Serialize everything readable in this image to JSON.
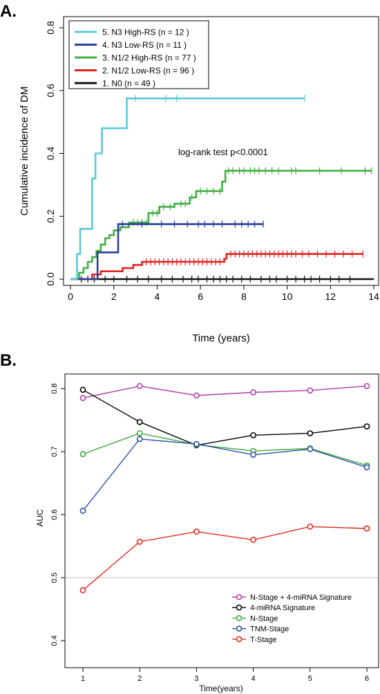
{
  "chart_data": [
    {
      "panel_label": "A.",
      "type": "line",
      "subtype": "step (cumulative incidence)",
      "xlabel": "Time (years)",
      "ylabel": "Cumulative incidence of DM",
      "xlim": [
        0,
        14
      ],
      "ylim": [
        0,
        0.8
      ],
      "xticks": [
        0,
        2,
        4,
        6,
        8,
        10,
        12,
        14
      ],
      "yticks": [
        0.0,
        0.2,
        0.4,
        0.6,
        0.8
      ],
      "grid": false,
      "legend_position": "top-left",
      "annotation": "log-rank test  p<0.0001",
      "series": [
        {
          "name": "5. N3 High-RS (n = 12 )",
          "color": "#5bc8d8",
          "steps": [
            [
              0.0,
              0.0
            ],
            [
              0.3,
              0.0
            ],
            [
              0.3,
              0.08
            ],
            [
              0.45,
              0.08
            ],
            [
              0.45,
              0.16
            ],
            [
              1.0,
              0.16
            ],
            [
              1.0,
              0.32
            ],
            [
              1.15,
              0.32
            ],
            [
              1.15,
              0.4
            ],
            [
              1.45,
              0.4
            ],
            [
              1.45,
              0.48
            ],
            [
              1.8,
              0.48
            ],
            [
              2.6,
              0.48
            ],
            [
              2.6,
              0.575
            ],
            [
              10.8,
              0.575
            ]
          ],
          "censor": [
            3.0,
            4.4,
            4.9,
            10.8
          ]
        },
        {
          "name": "4. N3 Low-RS (n = 11 )",
          "color": "#2a3f9b",
          "steps": [
            [
              0.0,
              0.0
            ],
            [
              1.25,
              0.0
            ],
            [
              1.25,
              0.085
            ],
            [
              2.2,
              0.085
            ],
            [
              2.2,
              0.175
            ],
            [
              8.9,
              0.175
            ]
          ],
          "censor": [
            2.4,
            3.3,
            4.2,
            4.8,
            5.4,
            5.9,
            6.2,
            6.6,
            7.0,
            7.6,
            7.9,
            8.2,
            8.5,
            8.9
          ]
        },
        {
          "name": "3. N1/2 High-RS (n = 77 )",
          "color": "#3fae3f",
          "steps": [
            [
              0.0,
              0.0
            ],
            [
              0.4,
              0.0
            ],
            [
              0.4,
              0.02
            ],
            [
              0.6,
              0.02
            ],
            [
              0.6,
              0.035
            ],
            [
              0.8,
              0.035
            ],
            [
              0.8,
              0.055
            ],
            [
              1.0,
              0.055
            ],
            [
              1.0,
              0.07
            ],
            [
              1.2,
              0.07
            ],
            [
              1.2,
              0.09
            ],
            [
              1.4,
              0.09
            ],
            [
              1.4,
              0.11
            ],
            [
              1.6,
              0.11
            ],
            [
              1.6,
              0.13
            ],
            [
              1.8,
              0.13
            ],
            [
              1.8,
              0.14
            ],
            [
              2.0,
              0.14
            ],
            [
              2.0,
              0.155
            ],
            [
              2.3,
              0.155
            ],
            [
              2.3,
              0.165
            ],
            [
              2.7,
              0.165
            ],
            [
              2.7,
              0.18
            ],
            [
              3.6,
              0.18
            ],
            [
              3.6,
              0.21
            ],
            [
              4.1,
              0.21
            ],
            [
              4.1,
              0.23
            ],
            [
              4.8,
              0.23
            ],
            [
              4.8,
              0.24
            ],
            [
              5.5,
              0.24
            ],
            [
              5.5,
              0.26
            ],
            [
              5.8,
              0.26
            ],
            [
              5.8,
              0.28
            ],
            [
              7.0,
              0.28
            ],
            [
              7.0,
              0.31
            ],
            [
              7.15,
              0.31
            ],
            [
              7.15,
              0.345
            ],
            [
              13.9,
              0.345
            ]
          ],
          "censor": [
            2.9,
            3.1,
            3.3,
            3.5,
            3.8,
            4.0,
            4.3,
            4.6,
            5.1,
            5.3,
            5.6,
            6.0,
            6.3,
            6.6,
            6.9,
            7.3,
            7.5,
            7.8,
            8.0,
            8.3,
            8.5,
            8.7,
            9.0,
            9.3,
            9.6,
            10.2,
            10.4,
            11.5,
            12.5,
            13.6,
            13.9
          ]
        },
        {
          "name": "2. N1/2 Low-RS (n = 96 )",
          "color": "#e02222",
          "steps": [
            [
              0.0,
              0.0
            ],
            [
              1.0,
              0.0
            ],
            [
              1.0,
              0.015
            ],
            [
              1.4,
              0.015
            ],
            [
              1.4,
              0.025
            ],
            [
              2.4,
              0.025
            ],
            [
              2.4,
              0.035
            ],
            [
              2.9,
              0.035
            ],
            [
              2.9,
              0.045
            ],
            [
              3.3,
              0.045
            ],
            [
              3.3,
              0.055
            ],
            [
              7.1,
              0.055
            ],
            [
              7.1,
              0.065
            ],
            [
              7.2,
              0.065
            ],
            [
              7.2,
              0.08
            ],
            [
              13.5,
              0.08
            ]
          ],
          "censor": [
            3.5,
            3.7,
            3.9,
            4.1,
            4.3,
            4.5,
            4.7,
            4.9,
            5.1,
            5.3,
            5.5,
            5.7,
            5.9,
            6.1,
            6.3,
            6.5,
            6.7,
            6.9,
            7.4,
            7.6,
            7.8,
            8.0,
            8.2,
            8.4,
            8.6,
            8.8,
            9.0,
            9.2,
            9.4,
            9.6,
            9.8,
            10.0,
            10.2,
            10.4,
            10.7,
            11.0,
            11.4,
            11.8,
            12.2,
            12.6,
            13.0,
            13.5
          ]
        },
        {
          "name": "1. N0 (n = 49 )",
          "color": "#111111",
          "steps": [
            [
              0.0,
              0.0
            ],
            [
              14.0,
              0.0
            ]
          ],
          "censor": [
            0.5,
            0.8,
            1.1,
            1.6,
            2.0,
            2.6,
            3.1,
            3.6,
            4.2,
            4.7,
            5.2,
            5.6,
            5.9,
            6.3,
            6.6,
            6.9,
            7.2,
            7.5,
            7.9,
            8.3,
            8.8,
            9.2,
            9.5,
            10.0,
            10.4,
            10.8,
            11.1,
            11.5,
            12.0,
            12.4,
            12.9
          ]
        }
      ]
    },
    {
      "panel_label": "B.",
      "type": "line",
      "markers": "open-circle",
      "xlabel": "Time(years)",
      "ylabel": "AUC",
      "xlim": [
        1,
        6
      ],
      "ylim": [
        0.4,
        0.8
      ],
      "xticks": [
        1,
        2,
        3,
        4,
        5,
        6
      ],
      "yticks": [
        0.4,
        0.5,
        0.6,
        0.7,
        0.8
      ],
      "reference_line": 0.5,
      "grid": false,
      "legend_position": "bottom-right",
      "x": [
        1,
        2,
        3,
        4,
        5,
        6
      ],
      "series": [
        {
          "name": "N-Stage + 4-miRNA Signature",
          "color": "#b03aa8",
          "values": [
            0.785,
            0.804,
            0.789,
            0.794,
            0.797,
            0.804
          ]
        },
        {
          "name": "4-miRNA Signature",
          "color": "#000000",
          "values": [
            0.798,
            0.747,
            0.71,
            0.726,
            0.729,
            0.74
          ]
        },
        {
          "name": "N-Stage",
          "color": "#3bab3b",
          "values": [
            0.696,
            0.729,
            0.711,
            0.701,
            0.705,
            0.678
          ]
        },
        {
          "name": "TNM-Stage",
          "color": "#2f4fa8",
          "values": [
            0.606,
            0.72,
            0.712,
            0.695,
            0.704,
            0.675
          ]
        },
        {
          "name": "T-Stage",
          "color": "#e0281f",
          "values": [
            0.48,
            0.557,
            0.573,
            0.56,
            0.581,
            0.578
          ]
        }
      ]
    }
  ]
}
